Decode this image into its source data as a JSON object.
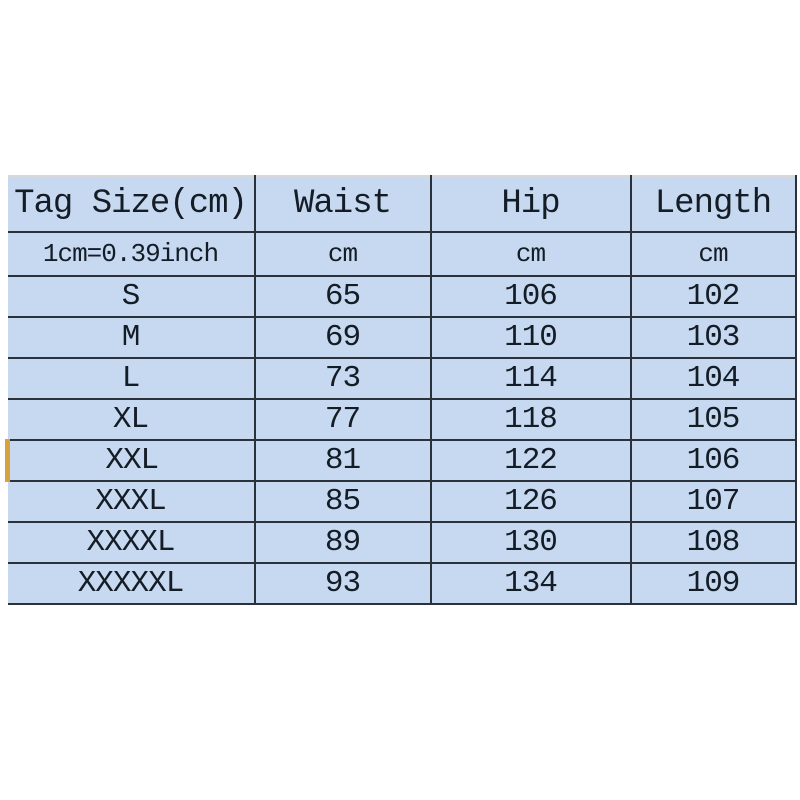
{
  "chart_data": {
    "type": "table",
    "columns": [
      "Tag Size(cm)",
      "Waist",
      "Hip",
      "Length"
    ],
    "unit_row": [
      "1cm=0.39inch",
      "cm",
      "cm",
      "cm"
    ],
    "rows": [
      [
        "S",
        "65",
        "106",
        "102"
      ],
      [
        "M",
        "69",
        "110",
        "103"
      ],
      [
        "L",
        "73",
        "114",
        "104"
      ],
      [
        "XL",
        "77",
        "118",
        "105"
      ],
      [
        "XXL",
        "81",
        "122",
        "106"
      ],
      [
        "XXXL",
        "85",
        "126",
        "107"
      ],
      [
        "XXXXL",
        "89",
        "130",
        "108"
      ],
      [
        "XXXXXL",
        "93",
        "134",
        "109"
      ]
    ],
    "highlighted_row": "XXL",
    "grid": "on",
    "legend": "none"
  },
  "colors": {
    "page_bg": "#ffffff",
    "cell_bg": "#c7d9f1",
    "grid": "#2a313b",
    "top_border": "#d8d8d8",
    "highlight": "#d7a33f",
    "text": "#141c26"
  }
}
